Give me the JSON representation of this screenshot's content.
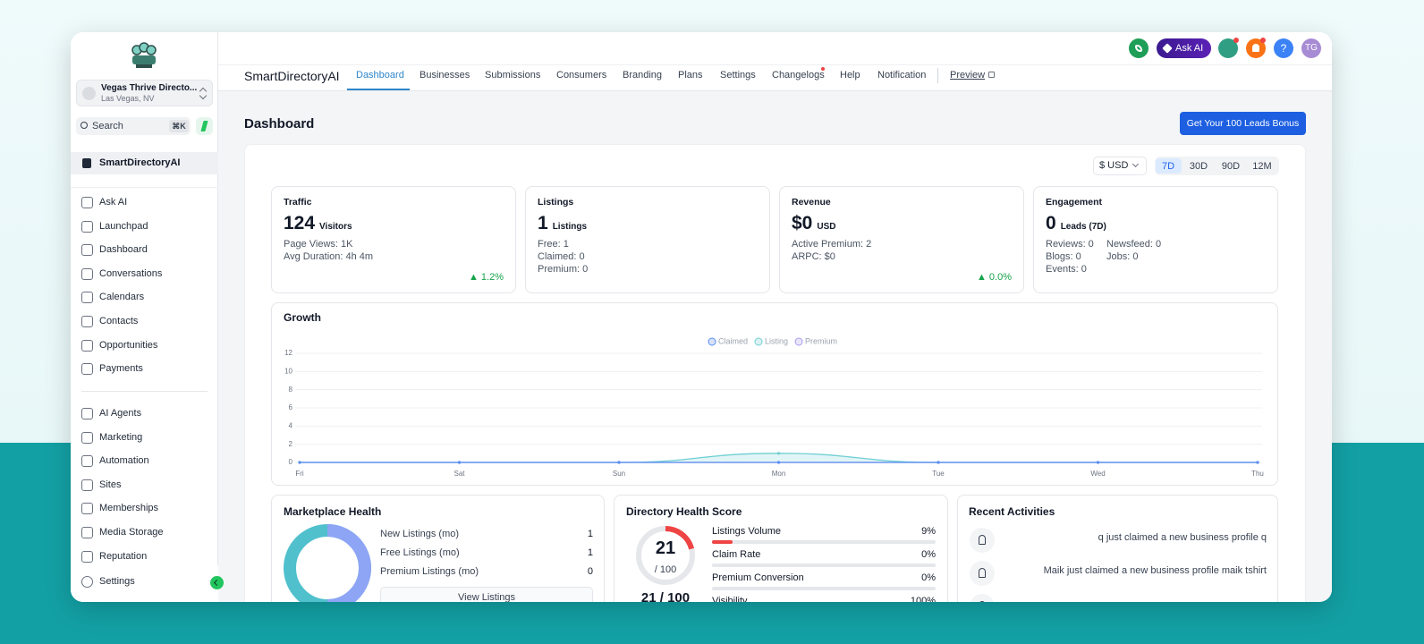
{
  "sidebar": {
    "location": {
      "name": "Vegas Thrive Directo...",
      "city": "Las Vegas, NV"
    },
    "search": {
      "placeholder": "Search",
      "shortcut": "⌘K"
    },
    "account": "SmartDirectoryAI",
    "menu_primary": [
      "Ask AI",
      "Launchpad",
      "Dashboard",
      "Conversations",
      "Calendars",
      "Contacts",
      "Opportunities",
      "Payments"
    ],
    "menu_secondary": [
      "AI Agents",
      "Marketing",
      "Automation",
      "Sites",
      "Memberships",
      "Media Storage",
      "Reputation"
    ],
    "settings": "Settings"
  },
  "topbar": {
    "ask_ai": "Ask AI",
    "help": "?",
    "avatar": "TG"
  },
  "nav": {
    "brand": "SmartDirectoryAI",
    "tabs": [
      "Dashboard",
      "Businesses",
      "Submissions",
      "Consumers",
      "Branding",
      "Plans",
      "Settings",
      "Changelogs",
      "Help",
      "Notification"
    ],
    "active_tab": 0,
    "preview": "Preview"
  },
  "page": {
    "title": "Dashboard",
    "cta": "Get Your 100 Leads Bonus",
    "currency": "$ USD",
    "ranges": [
      "7D",
      "30D",
      "90D",
      "12M"
    ],
    "active_range": 0
  },
  "stats": [
    {
      "title": "Traffic",
      "value": 124,
      "unit": "Visitors",
      "lines": [
        [
          "Page Views: 1K"
        ],
        [
          "Avg Duration: 4h 4m"
        ]
      ],
      "change": "▲ 1.2%"
    },
    {
      "title": "Listings",
      "value": 1,
      "unit": "Listings",
      "lines": [
        [
          "Free: 1"
        ],
        [
          "Claimed: 0"
        ],
        [
          "Premium: 0"
        ]
      ]
    },
    {
      "title": "Revenue",
      "value": "$0",
      "unit": "USD",
      "lines": [
        [
          "Active Premium: 2"
        ],
        [
          "ARPC: $0"
        ]
      ],
      "change": "▲ 0.0%"
    },
    {
      "title": "Engagement",
      "value": 0,
      "unit": "Leads (7D)",
      "lines": [
        [
          "Reviews: 0",
          "Newsfeed: 0"
        ],
        [
          "Blogs: 0",
          "Jobs: 0"
        ],
        [
          "Events: 0"
        ]
      ]
    }
  ],
  "chart_data": {
    "type": "line",
    "title": "Growth",
    "categories": [
      "Fri",
      "Sat",
      "Sun",
      "Mon",
      "Tue",
      "Wed",
      "Thu"
    ],
    "series": [
      {
        "name": "Claimed",
        "color": "#5b8def",
        "values": [
          0,
          0,
          0,
          0,
          0,
          0,
          0
        ]
      },
      {
        "name": "Listing",
        "color": "#6fcfd4",
        "values": [
          0,
          0,
          0,
          1,
          0,
          0,
          0
        ]
      },
      {
        "name": "Premium",
        "color": "#a99cf0",
        "values": [
          0,
          0,
          0,
          0,
          0,
          0,
          0
        ]
      }
    ],
    "ylim": [
      0,
      12
    ],
    "yticks": [
      0,
      2,
      4,
      6,
      8,
      10,
      12
    ],
    "grid": true,
    "legend": "top"
  },
  "marketplace_health": {
    "title": "Marketplace Health",
    "rows": [
      {
        "label": "New Listings (mo)",
        "value": 1
      },
      {
        "label": "Free Listings (mo)",
        "value": 1
      },
      {
        "label": "Premium Listings (mo)",
        "value": 0
      }
    ],
    "button": "View Listings"
  },
  "health_score": {
    "title": "Directory Health Score",
    "score": 21,
    "score_max": {
      "value": 100,
      "label": "/ 100"
    },
    "summary": "21 / 100",
    "metrics": [
      {
        "label": "Listings Volume",
        "value": 9,
        "value_label": "9%"
      },
      {
        "label": "Claim Rate",
        "value": 0,
        "value_label": "0%"
      },
      {
        "label": "Premium Conversion",
        "value": 0,
        "value_label": "0%"
      },
      {
        "label": "Visibility",
        "value": 100,
        "value_label": "100%"
      }
    ]
  },
  "recent_activities": {
    "title": "Recent Activities",
    "items": [
      "q just claimed a new business profile q",
      "Maik just claimed a new business profile maik tshirt"
    ]
  }
}
